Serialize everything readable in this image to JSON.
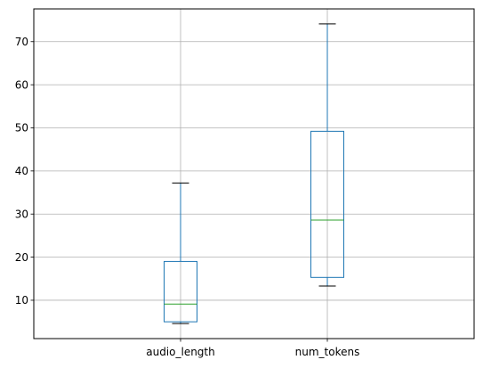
{
  "chart_data": {
    "type": "boxplot",
    "title": "",
    "xlabel": "",
    "ylabel": "",
    "categories": [
      "audio_length",
      "num_tokens"
    ],
    "boxes": [
      {
        "category": "audio_length",
        "whisker_low": 4.6,
        "q1": 5.0,
        "median": 9.1,
        "q3": 19.0,
        "whisker_high": 37.2
      },
      {
        "category": "num_tokens",
        "whisker_low": 13.3,
        "q1": 15.3,
        "median": 28.6,
        "q3": 49.2,
        "whisker_high": 74.1
      }
    ],
    "ylim": [
      1.1,
      77.6
    ],
    "yticks": [
      10,
      20,
      30,
      40,
      50,
      60,
      70
    ],
    "grid": true,
    "legend": "none",
    "colors": {
      "box": "#1f77b4",
      "median": "#2ca02c",
      "cap": "#000000",
      "grid": "#b0b0b0",
      "axis": "#000000"
    }
  }
}
